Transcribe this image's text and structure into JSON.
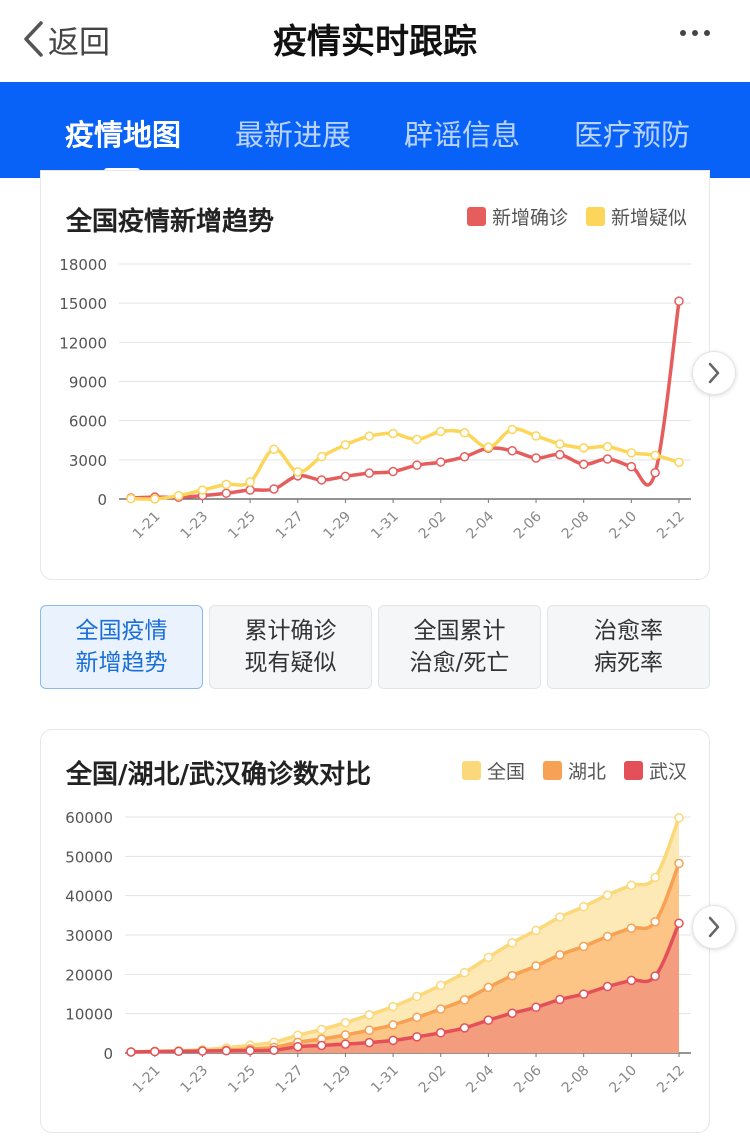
{
  "header": {
    "back_label": "返回",
    "title": "疫情实时跟踪"
  },
  "tabs": [
    {
      "label": "疫情地图",
      "active": true
    },
    {
      "label": "最新进展",
      "active": false
    },
    {
      "label": "辟谣信息",
      "active": false
    },
    {
      "label": "医疗预防",
      "active": false
    }
  ],
  "chart_buttons": [
    {
      "line1": "全国疫情",
      "line2": "新增趋势",
      "active": true
    },
    {
      "line1": "累计确诊",
      "line2": "现有疑似",
      "active": false
    },
    {
      "line1": "全国累计",
      "line2": "治愈/死亡",
      "active": false
    },
    {
      "line1": "治愈率",
      "line2": "病死率",
      "active": false
    }
  ],
  "colors": {
    "brand_blue": "#0862f7",
    "confirm_red": "#e65d5d",
    "suspect_yellow": "#fbd65a",
    "hubei_orange": "#f6a153",
    "wuhan_red": "#e3505a"
  },
  "chart_data": [
    {
      "type": "line",
      "title": "全国疫情新增趋势",
      "legend_position": "top-right",
      "grid": true,
      "ylim": [
        0,
        18000
      ],
      "y_ticks": [
        "0",
        "3000",
        "6000",
        "9000",
        "12000",
        "15000",
        "18000"
      ],
      "x_tick_labels": [
        "1-21",
        "1-23",
        "1-25",
        "1-27",
        "1-29",
        "1-31",
        "2-02",
        "2-04",
        "2-06",
        "2-08",
        "2-10",
        "2-12"
      ],
      "x": [
        "1-20",
        "1-21",
        "1-22",
        "1-23",
        "1-24",
        "1-25",
        "1-26",
        "1-27",
        "1-28",
        "1-29",
        "1-30",
        "1-31",
        "2-01",
        "2-02",
        "2-03",
        "2-04",
        "2-05",
        "2-06",
        "2-07",
        "2-08",
        "2-09",
        "2-10",
        "2-11",
        "2-12"
      ],
      "series": [
        {
          "name": "新增确诊",
          "color": "#e65d5d",
          "values": [
            77,
            149,
            131,
            259,
            444,
            688,
            769,
            1771,
            1459,
            1737,
            1982,
            2102,
            2590,
            2829,
            3235,
            3887,
            3694,
            3143,
            3399,
            2656,
            3062,
            2478,
            2015,
            15152
          ]
        },
        {
          "name": "新增疑似",
          "color": "#fbd65a",
          "values": [
            27,
            0,
            257,
            680,
            1118,
            1309,
            3806,
            2077,
            3248,
            4148,
            4812,
            5019,
            4562,
            5173,
            5072,
            3971,
            5328,
            4833,
            4214,
            3916,
            4008,
            3536,
            3342,
            2807
          ]
        }
      ]
    },
    {
      "type": "area",
      "title": "全国/湖北/武汉确诊数对比",
      "legend_position": "top-right",
      "grid": true,
      "ylim": [
        0,
        60000
      ],
      "y_ticks": [
        "0",
        "10000",
        "20000",
        "30000",
        "40000",
        "50000",
        "60000"
      ],
      "x_tick_labels": [
        "1-21",
        "1-23",
        "1-25",
        "1-27",
        "1-29",
        "1-31",
        "2-02",
        "2-04",
        "2-06",
        "2-08",
        "2-10",
        "2-12"
      ],
      "x": [
        "1-20",
        "1-21",
        "1-22",
        "1-23",
        "1-24",
        "1-25",
        "1-26",
        "1-27",
        "1-28",
        "1-29",
        "1-30",
        "1-31",
        "2-01",
        "2-02",
        "2-03",
        "2-04",
        "2-05",
        "2-06",
        "2-07",
        "2-08",
        "2-09",
        "2-10",
        "2-11",
        "2-12"
      ],
      "series": [
        {
          "name": "全国",
          "color": "#fbd87a",
          "values": [
            291,
            440,
            571,
            830,
            1287,
            1975,
            2744,
            4515,
            5974,
            7711,
            9692,
            11791,
            14380,
            17205,
            20438,
            24324,
            28018,
            31161,
            34546,
            37198,
            40171,
            42638,
            44653,
            59804
          ]
        },
        {
          "name": "湖北",
          "color": "#f6a153",
          "values": [
            270,
            375,
            444,
            549,
            729,
            1052,
            1423,
            2714,
            3554,
            4586,
            5806,
            7153,
            9074,
            11177,
            13522,
            16678,
            19665,
            22112,
            24953,
            27100,
            29631,
            31728,
            33366,
            48206
          ]
        },
        {
          "name": "武汉",
          "color": "#e3505a",
          "values": [
            258,
            363,
            425,
            495,
            572,
            618,
            698,
            1590,
            1905,
            2261,
            2639,
            3215,
            4109,
            5142,
            6384,
            8351,
            10117,
            11618,
            13603,
            14982,
            16902,
            18454,
            19558,
            32994
          ]
        }
      ]
    }
  ]
}
